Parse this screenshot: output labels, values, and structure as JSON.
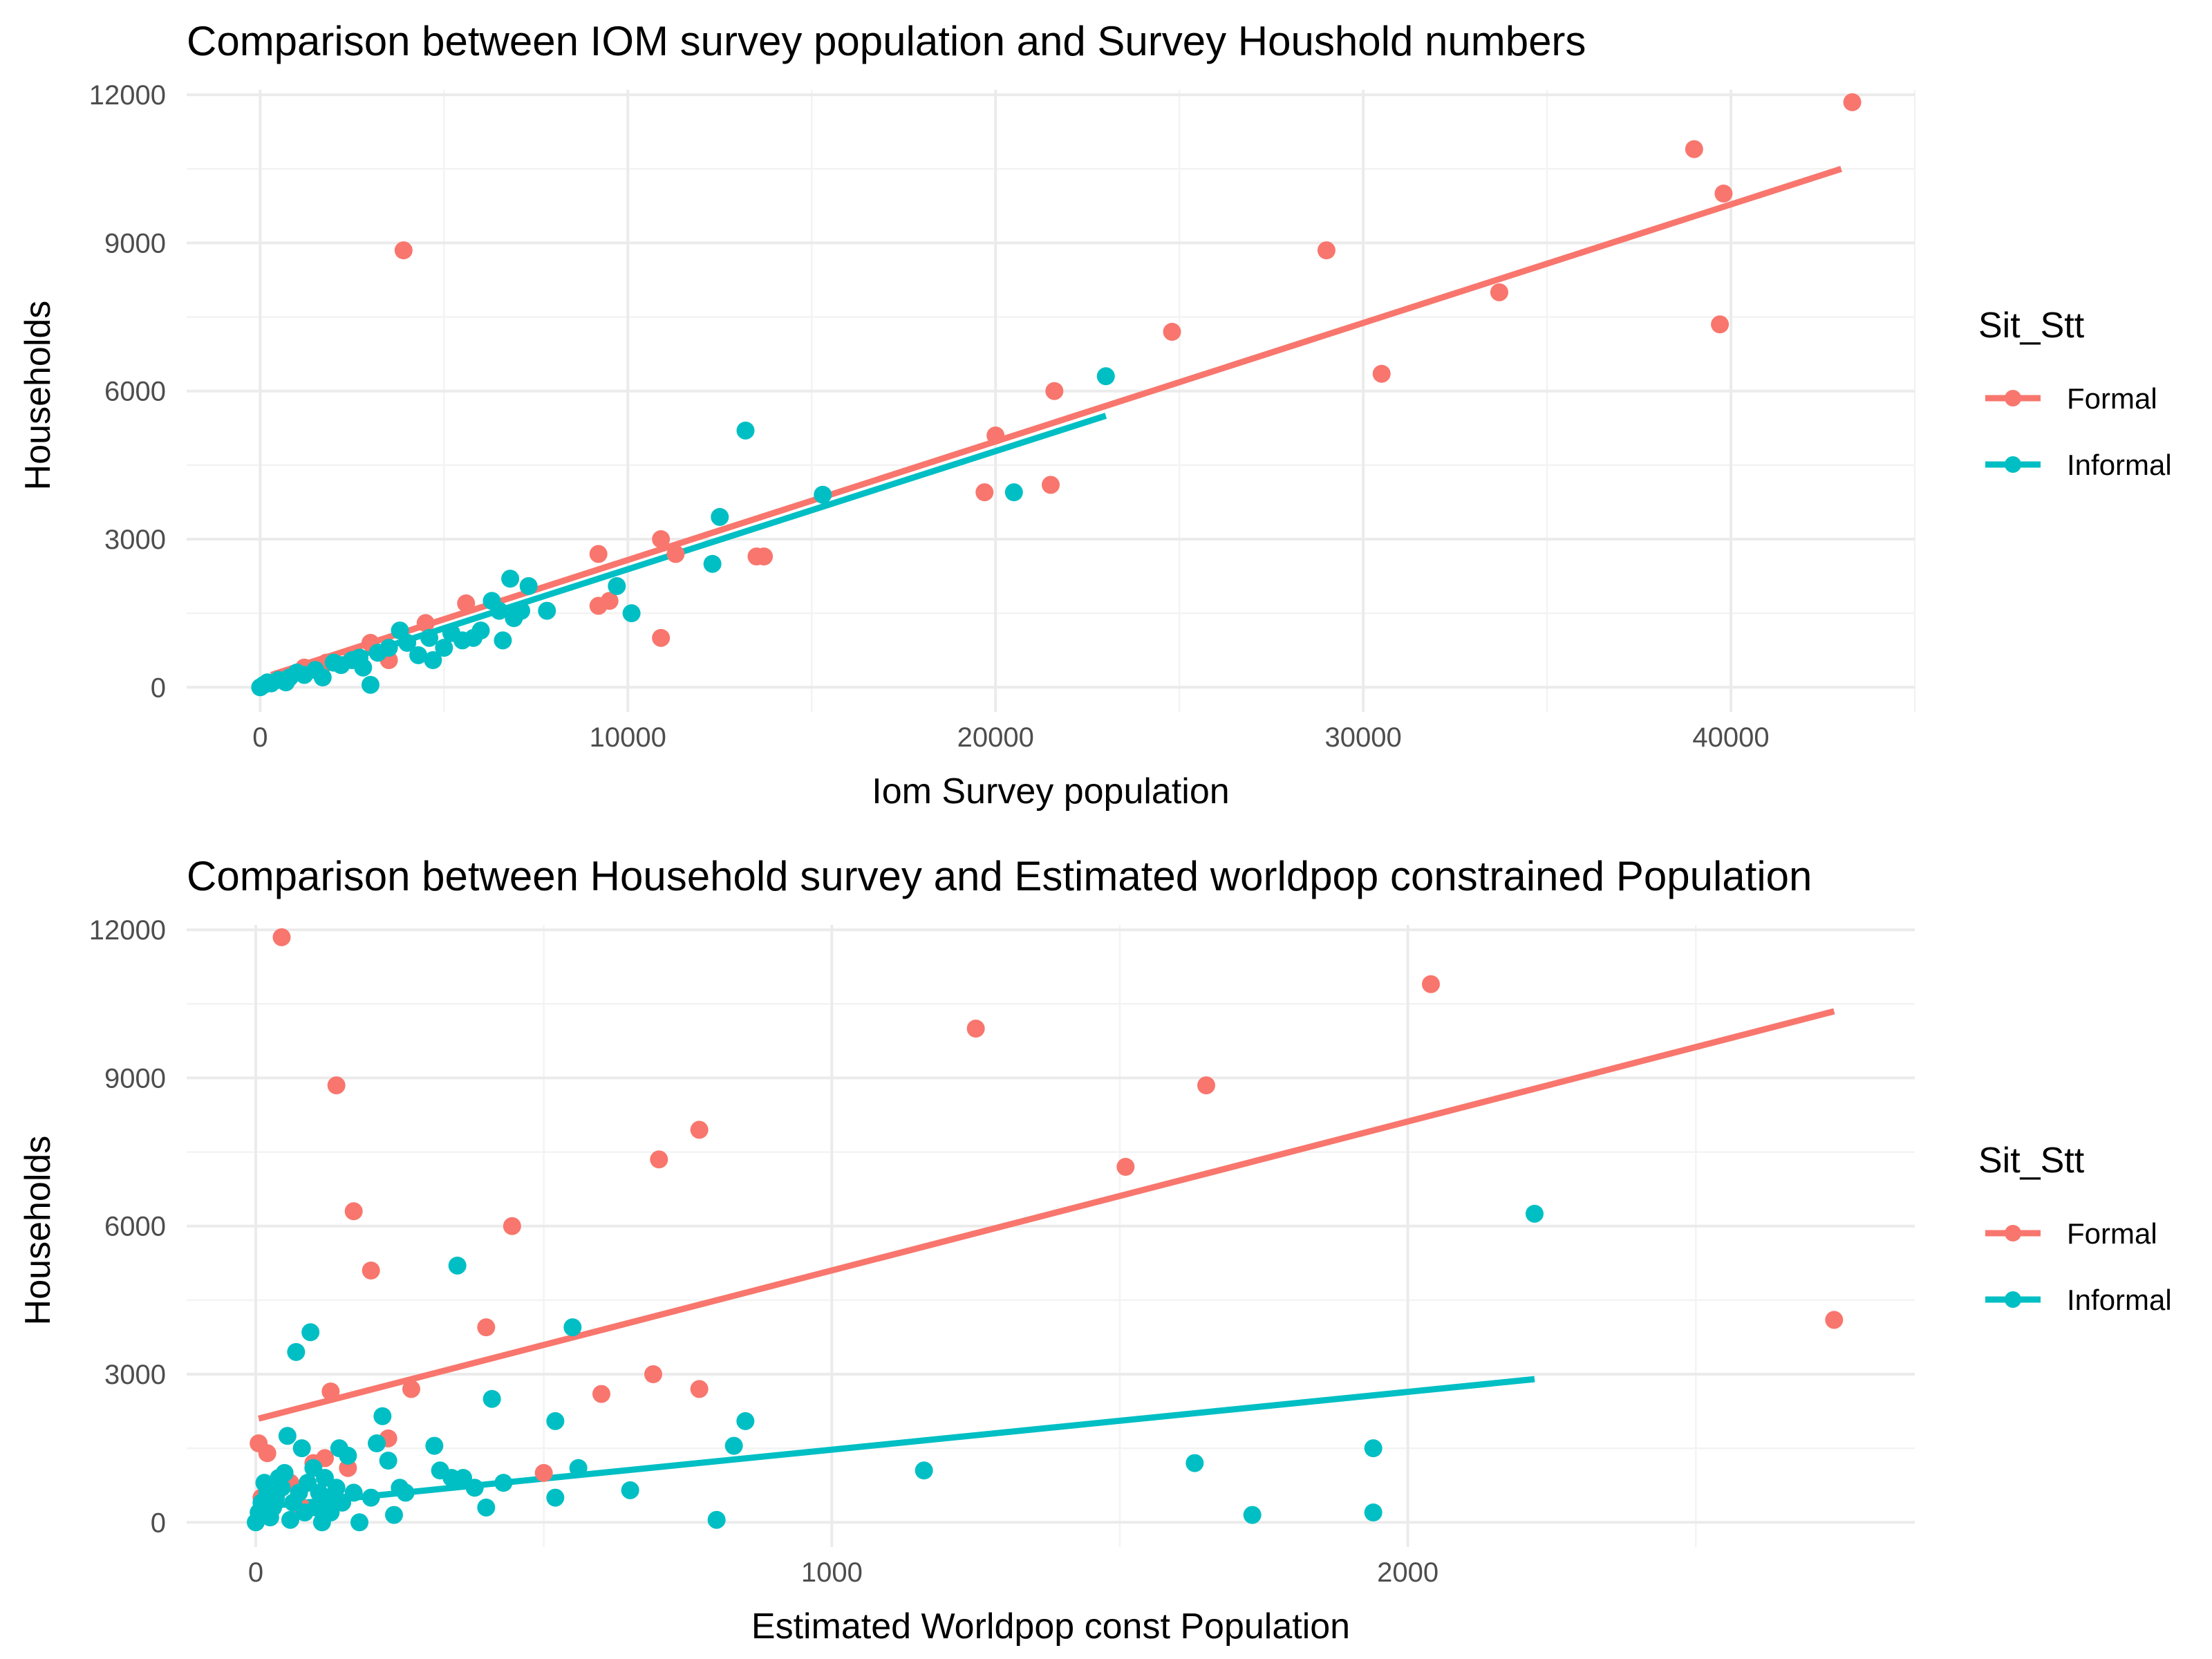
{
  "colors": {
    "formal": "#F8766D",
    "informal": "#00BFC4"
  },
  "chart_data": [
    {
      "type": "scatter",
      "title": "Comparison between IOM survey population and Survey Houshold numbers",
      "xlabel": "Iom Survey population",
      "ylabel": "Households",
      "xlim": [
        -2000,
        45000
      ],
      "ylim": [
        -500,
        12100
      ],
      "xticks": [
        0,
        10000,
        20000,
        30000,
        40000
      ],
      "xtick_labels": [
        "0",
        "10000",
        "20000",
        "30000",
        "40000"
      ],
      "yticks": [
        0,
        3000,
        6000,
        9000,
        12000
      ],
      "ytick_labels": [
        "0",
        "3000",
        "6000",
        "9000",
        "12000"
      ],
      "grid": true,
      "legend": {
        "title": "Sit_Stt",
        "position": "right",
        "entries": [
          "Formal",
          "Informal"
        ]
      },
      "series": [
        {
          "name": "Formal",
          "color_key": "formal",
          "fit": {
            "x": [
              300,
              43000
            ],
            "y": [
              250,
              10500
            ]
          },
          "points": [
            [
              3900,
              8850
            ],
            [
              9200,
              2700
            ],
            [
              10900,
              3000
            ],
            [
              10900,
              1000
            ],
            [
              11300,
              2700
            ],
            [
              13500,
              2650
            ],
            [
              13700,
              2650
            ],
            [
              9500,
              1750
            ],
            [
              9200,
              1650
            ],
            [
              5600,
              1700
            ],
            [
              4500,
              1300
            ],
            [
              3500,
              550
            ],
            [
              19700,
              3950
            ],
            [
              20000,
              5100
            ],
            [
              21600,
              6000
            ],
            [
              21500,
              4100
            ],
            [
              24800,
              7200
            ],
            [
              29000,
              8850
            ],
            [
              30500,
              6350
            ],
            [
              33700,
              8000
            ],
            [
              39000,
              10900
            ],
            [
              39800,
              10000
            ],
            [
              39700,
              7350
            ],
            [
              43300,
              11850
            ],
            [
              2500,
              600
            ],
            [
              1800,
              500
            ],
            [
              1200,
              400
            ],
            [
              3000,
              900
            ]
          ]
        },
        {
          "name": "Informal",
          "color_key": "informal",
          "fit": {
            "x": [
              0,
              23000
            ],
            "y": [
              0,
              5500
            ]
          },
          "points": [
            [
              0,
              0
            ],
            [
              100,
              50
            ],
            [
              200,
              100
            ],
            [
              300,
              80
            ],
            [
              500,
              150
            ],
            [
              700,
              100
            ],
            [
              800,
              200
            ],
            [
              1000,
              300
            ],
            [
              1200,
              250
            ],
            [
              1500,
              350
            ],
            [
              1700,
              200
            ],
            [
              2000,
              500
            ],
            [
              2200,
              450
            ],
            [
              2500,
              550
            ],
            [
              2700,
              600
            ],
            [
              2800,
              400
            ],
            [
              3000,
              50
            ],
            [
              3200,
              700
            ],
            [
              3500,
              800
            ],
            [
              3800,
              1150
            ],
            [
              4000,
              900
            ],
            [
              4300,
              650
            ],
            [
              4600,
              1000
            ],
            [
              4700,
              550
            ],
            [
              5000,
              800
            ],
            [
              5200,
              1100
            ],
            [
              5500,
              950
            ],
            [
              5800,
              1000
            ],
            [
              6000,
              1150
            ],
            [
              6300,
              1750
            ],
            [
              6500,
              1550
            ],
            [
              6600,
              950
            ],
            [
              6800,
              2200
            ],
            [
              6900,
              1400
            ],
            [
              7100,
              1550
            ],
            [
              7300,
              2050
            ],
            [
              7800,
              1550
            ],
            [
              9700,
              2050
            ],
            [
              10100,
              1500
            ],
            [
              12300,
              2500
            ],
            [
              12500,
              3450
            ],
            [
              13200,
              5200
            ],
            [
              15300,
              3900
            ],
            [
              20500,
              3950
            ],
            [
              23000,
              6300
            ]
          ]
        }
      ]
    },
    {
      "type": "scatter",
      "title": "Comparison between Household survey and Estimated worldpop constrained Population",
      "xlabel": "Estimated Worldpop const Population",
      "ylabel": "Households",
      "xlim": [
        -120,
        2880
      ],
      "ylim": [
        -500,
        12100
      ],
      "xticks": [
        0,
        1000,
        2000
      ],
      "xtick_labels": [
        "0",
        "1000",
        "2000"
      ],
      "yticks": [
        0,
        3000,
        6000,
        9000,
        12000
      ],
      "ytick_labels": [
        "0",
        "3000",
        "6000",
        "9000",
        "12000"
      ],
      "grid": true,
      "legend": {
        "title": "Sit_Stt",
        "position": "right",
        "entries": [
          "Formal",
          "Informal"
        ]
      },
      "series": [
        {
          "name": "Formal",
          "color_key": "formal",
          "fit": {
            "x": [
              5,
              2740
            ],
            "y": [
              2100,
              10350
            ]
          },
          "points": [
            [
              45,
              11850
            ],
            [
              140,
              8850
            ],
            [
              170,
              6300
            ],
            [
              200,
              5100
            ],
            [
              130,
              2650
            ],
            [
              270,
              2700
            ],
            [
              230,
              1700
            ],
            [
              160,
              1100
            ],
            [
              120,
              1300
            ],
            [
              100,
              1200
            ],
            [
              20,
              1400
            ],
            [
              5,
              1600
            ],
            [
              10,
              500
            ],
            [
              80,
              300
            ],
            [
              400,
              3950
            ],
            [
              445,
              6000
            ],
            [
              500,
              1000
            ],
            [
              600,
              2600
            ],
            [
              690,
              3000
            ],
            [
              700,
              7350
            ],
            [
              770,
              7950
            ],
            [
              770,
              2700
            ],
            [
              1250,
              10000
            ],
            [
              1510,
              7200
            ],
            [
              1650,
              8850
            ],
            [
              2040,
              10900
            ],
            [
              2740,
              4100
            ],
            [
              60,
              800
            ],
            [
              150,
              400
            ]
          ]
        },
        {
          "name": "Informal",
          "color_key": "informal",
          "fit": {
            "x": [
              0,
              2220
            ],
            "y": [
              300,
              2900
            ]
          },
          "points": [
            [
              0,
              0
            ],
            [
              5,
              200
            ],
            [
              10,
              400
            ],
            [
              15,
              800
            ],
            [
              20,
              600
            ],
            [
              25,
              100
            ],
            [
              30,
              300
            ],
            [
              35,
              500
            ],
            [
              40,
              900
            ],
            [
              45,
              700
            ],
            [
              50,
              1000
            ],
            [
              55,
              1750
            ],
            [
              60,
              50
            ],
            [
              65,
              400
            ],
            [
              70,
              3450
            ],
            [
              75,
              600
            ],
            [
              80,
              1500
            ],
            [
              85,
              200
            ],
            [
              90,
              800
            ],
            [
              95,
              3850
            ],
            [
              100,
              1100
            ],
            [
              105,
              300
            ],
            [
              110,
              600
            ],
            [
              115,
              0
            ],
            [
              120,
              900
            ],
            [
              125,
              500
            ],
            [
              130,
              200
            ],
            [
              140,
              700
            ],
            [
              145,
              1500
            ],
            [
              150,
              400
            ],
            [
              160,
              1350
            ],
            [
              170,
              600
            ],
            [
              180,
              0
            ],
            [
              200,
              500
            ],
            [
              210,
              1600
            ],
            [
              220,
              2150
            ],
            [
              230,
              1250
            ],
            [
              240,
              150
            ],
            [
              250,
              700
            ],
            [
              260,
              600
            ],
            [
              310,
              1550
            ],
            [
              320,
              1050
            ],
            [
              340,
              900
            ],
            [
              350,
              5200
            ],
            [
              360,
              900
            ],
            [
              380,
              700
            ],
            [
              400,
              300
            ],
            [
              410,
              2500
            ],
            [
              430,
              800
            ],
            [
              520,
              2050
            ],
            [
              520,
              500
            ],
            [
              550,
              3950
            ],
            [
              560,
              1100
            ],
            [
              650,
              650
            ],
            [
              800,
              50
            ],
            [
              830,
              1550
            ],
            [
              850,
              2050
            ],
            [
              1160,
              1050
            ],
            [
              1630,
              1200
            ],
            [
              1730,
              150
            ],
            [
              1940,
              1500
            ],
            [
              1940,
              200
            ],
            [
              2220,
              6250
            ]
          ]
        }
      ]
    }
  ]
}
